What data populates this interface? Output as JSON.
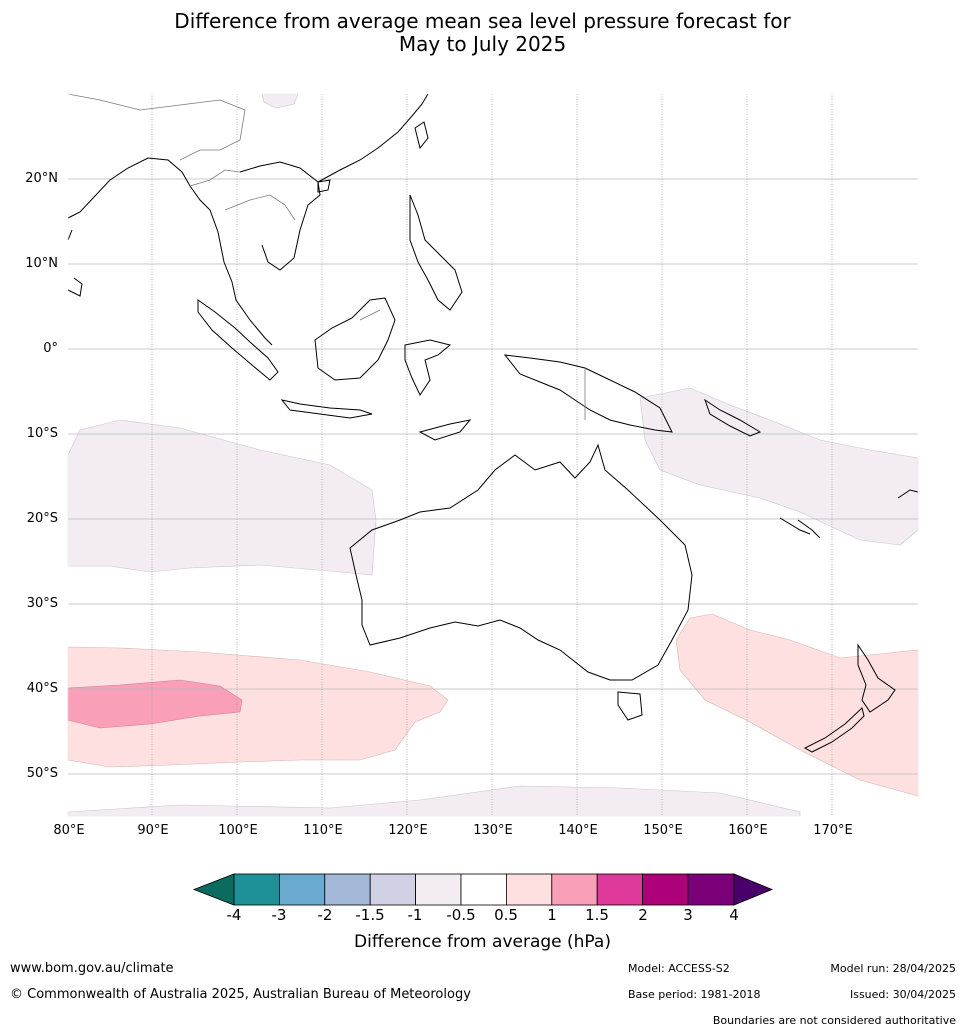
{
  "title_line1": "Difference from average mean sea level pressure forecast for",
  "title_line2": "May to July 2025",
  "lat_labels": [
    "20°N",
    "10°N",
    "0°",
    "10°S",
    "20°S",
    "30°S",
    "40°S",
    "50°S"
  ],
  "lon_labels": [
    "80°E",
    "90°E",
    "100°E",
    "110°E",
    "120°E",
    "130°E",
    "140°E",
    "150°E",
    "160°E",
    "170°E"
  ],
  "colorbar": {
    "ticks": [
      "-4",
      "-3",
      "-2",
      "-1.5",
      "-1",
      "-0.5",
      "0.5",
      "1",
      "1.5",
      "2",
      "3",
      "4"
    ],
    "colors": [
      "#0b6b5f",
      "#1e9198",
      "#6aaad1",
      "#a4b8d8",
      "#d0d1e5",
      "#f3edf3",
      "#ffffff",
      "#fde0df",
      "#f9a0b8",
      "#e0399c",
      "#ad0079",
      "#7b0078",
      "#4a006a"
    ],
    "label": "Difference from average (hPa)"
  },
  "footer": {
    "website": "www.bom.gov.au/climate",
    "copyright": "© Commonwealth of Australia 2025, Australian Bureau of Meteorology",
    "model": "Model: ACCESS-S2",
    "base_period": "Base period: 1981-2018",
    "model_run": "Model run: 28/04/2025",
    "issued": "Issued: 30/04/2025",
    "boundaries": "Boundaries are not considered authoritative"
  }
}
